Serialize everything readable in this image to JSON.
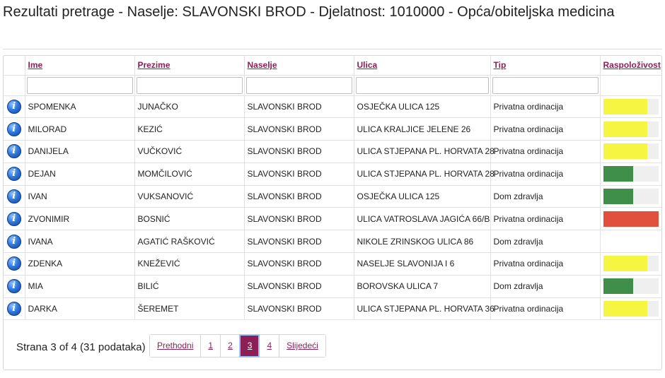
{
  "page": {
    "title": "Rezultati pretrage - Naselje: SLAVONSKI BROD - Djelatnost: 1010000 - Opća/obiteljska medicina"
  },
  "table": {
    "columns": [
      "Ime",
      "Prezime",
      "Naselje",
      "Ulica",
      "Tip",
      "Raspoloživost"
    ],
    "rows": [
      {
        "ime": "SPOMENKA",
        "prezime": "JUNAČKO",
        "naselje": "SLAVONSKI BROD",
        "ulica": "OSJEČKA ULICA 125",
        "tip": "Privatna ordinacija",
        "availability": {
          "level": 0.8,
          "color": "#f5f542"
        }
      },
      {
        "ime": "MILORAD",
        "prezime": "KEZIĆ",
        "naselje": "SLAVONSKI BROD",
        "ulica": "ULICA KRALJICE JELENE 26",
        "tip": "Privatna ordinacija",
        "availability": {
          "level": 0.8,
          "color": "#f5f542"
        }
      },
      {
        "ime": "DANIJELA",
        "prezime": "VUČKOVIĆ",
        "naselje": "SLAVONSKI BROD",
        "ulica": "ULICA STJEPANA PL. HORVATA 28",
        "tip": "Privatna ordinacija",
        "availability": {
          "level": 0.8,
          "color": "#f5f542"
        }
      },
      {
        "ime": "DEJAN",
        "prezime": "MOMČILOVIĆ",
        "naselje": "SLAVONSKI BROD",
        "ulica": "ULICA STJEPANA PL. HORVATA 28",
        "tip": "Privatna ordinacija",
        "availability": {
          "level": 0.55,
          "color": "#3f8f4a"
        }
      },
      {
        "ime": "IVAN",
        "prezime": "VUKSANOVIĆ",
        "naselje": "SLAVONSKI BROD",
        "ulica": "OSJEČKA ULICA 125",
        "tip": "Dom zdravlja",
        "availability": {
          "level": 0.55,
          "color": "#3f8f4a"
        }
      },
      {
        "ime": "ZVONIMIR",
        "prezime": "BOSNIĆ",
        "naselje": "SLAVONSKI BROD",
        "ulica": "ULICA VATROSLAVA JAGIĆA 66/B",
        "tip": "Privatna ordinacija",
        "availability": {
          "level": 1.0,
          "color": "#e1503c"
        }
      },
      {
        "ime": "IVANA",
        "prezime": "AGATIĆ RAŠKOVIĆ",
        "naselje": "SLAVONSKI BROD",
        "ulica": "NIKOLE ZRINSKOG ULICA 86",
        "tip": "Dom zdravlja",
        "availability": null
      },
      {
        "ime": "ZDENKA",
        "prezime": "KNEŽEVIĆ",
        "naselje": "SLAVONSKI BROD",
        "ulica": "NASELJE SLAVONIJA I 6",
        "tip": "Privatna ordinacija",
        "availability": {
          "level": 0.8,
          "color": "#f5f542"
        }
      },
      {
        "ime": "MIA",
        "prezime": "BILIĆ",
        "naselje": "SLAVONSKI BROD",
        "ulica": "BOROVSKA ULICA 7",
        "tip": "Dom zdravlja",
        "availability": {
          "level": 0.55,
          "color": "#3f8f4a"
        }
      },
      {
        "ime": "DARKA",
        "prezime": "ŠEREMET",
        "naselje": "SLAVONSKI BROD",
        "ulica": "ULICA STJEPANA PL. HORVATA 36",
        "tip": "Privatna ordinacija",
        "availability": {
          "level": 0.8,
          "color": "#f5f542"
        }
      }
    ]
  },
  "pager": {
    "summary": "Strana 3 of 4 (31 podataka)",
    "previous_label": "Prethodni",
    "next_label": "Slijedeći",
    "pages": [
      "1",
      "2",
      "3",
      "4"
    ],
    "current_page": "3"
  },
  "icons": {
    "row_info": "info-icon",
    "info_glyph": "i"
  },
  "colors": {
    "accent": "#8b1f56",
    "available_high": "#f5f542",
    "available_medium": "#3f8f4a",
    "available_none": "#e1503c"
  }
}
